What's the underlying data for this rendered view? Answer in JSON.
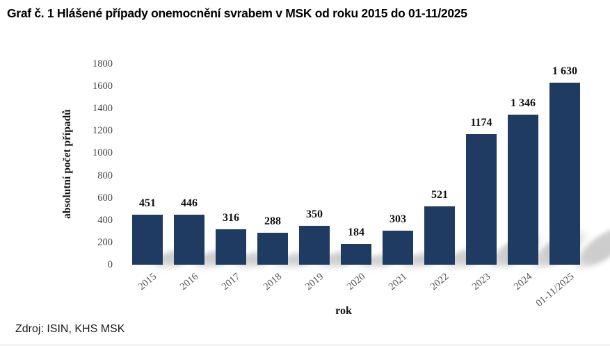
{
  "title": "Graf č. 1 Hlášené případy onemocnění svrabem v MSK od roku 2015 do 01-11/2025",
  "source": "Zdroj: ISIN, KHS MSK",
  "chart_data": {
    "type": "bar",
    "title": "Graf č. 1 Hlášené případy onemocnění svrabem v MSK od roku 2015 do 01-11/2025",
    "categories": [
      "2015",
      "2016",
      "2017",
      "2018",
      "2019",
      "2020",
      "2021",
      "2022",
      "2023",
      "2024",
      "01-11/2025"
    ],
    "values": [
      451,
      446,
      316,
      288,
      350,
      184,
      303,
      521,
      1174,
      1346,
      1630
    ],
    "value_labels": [
      "451",
      "446",
      "316",
      "288",
      "350",
      "184",
      "303",
      "521",
      "1174",
      "1 346",
      "1 630"
    ],
    "xlabel": "rok",
    "ylabel": "absolutní počet případů",
    "ylim": [
      0,
      1800
    ],
    "ytick_step": 200,
    "yticks": [
      "0",
      "200",
      "400",
      "600",
      "800",
      "1000",
      "1200",
      "1400",
      "1600",
      "1800"
    ],
    "grid": false,
    "legend": "none",
    "bar_color": "#1f3b61",
    "value_label_color": "#111111",
    "tick_label_color": "#444444",
    "source": "Zdroj: ISIN, KHS MSK"
  }
}
